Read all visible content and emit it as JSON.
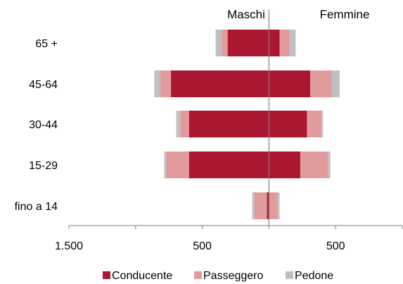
{
  "chart_data": {
    "type": "bar",
    "orientation": "horizontal",
    "layout": "butterfly",
    "side_labels": {
      "left": "Maschi",
      "right": "Femmine"
    },
    "categories": [
      "65 +",
      "45-64",
      "30-44",
      "15-29",
      "fino a 14"
    ],
    "series": [
      {
        "name": "Conducente",
        "color": "#AB1731",
        "left": [
          310,
          735,
          600,
          600,
          15
        ],
        "right": [
          80,
          310,
          285,
          235,
          5
        ]
      },
      {
        "name": "Passeggero",
        "color": "#E29B9C",
        "left": [
          45,
          80,
          65,
          170,
          95
        ],
        "right": [
          75,
          160,
          110,
          210,
          60
        ]
      },
      {
        "name": "Pedone",
        "color": "#C0C0C0",
        "left": [
          45,
          45,
          30,
          15,
          15
        ],
        "right": [
          45,
          60,
          10,
          15,
          15
        ]
      }
    ],
    "x_axis": {
      "range": [
        -1500,
        1000
      ],
      "ticks": [
        {
          "value": -1500,
          "label": "1.500"
        },
        {
          "value": -500,
          "label": "500"
        },
        {
          "value": 500,
          "label": "500"
        }
      ]
    },
    "legend_position": "bottom",
    "grid": false
  }
}
